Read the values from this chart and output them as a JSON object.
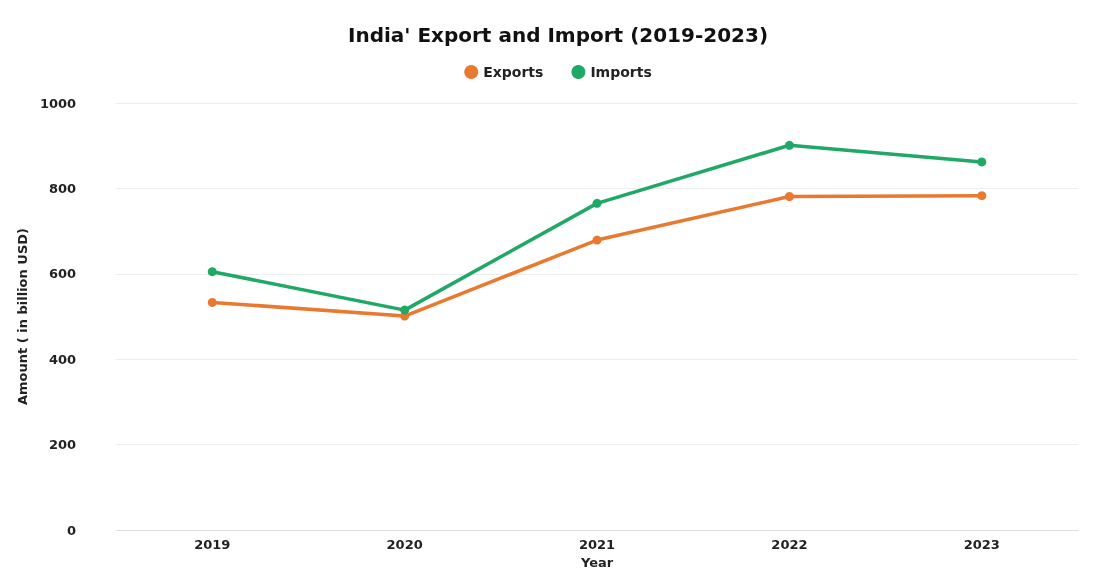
{
  "chart_data": {
    "type": "line",
    "title": "India' Export and Import (2019-2023)",
    "xlabel": "Year",
    "ylabel": "Amount ( in billion USD)",
    "categories": [
      "2019",
      "2020",
      "2021",
      "2022",
      "2023"
    ],
    "series": [
      {
        "name": "Exports",
        "color": "#e8792f",
        "values": [
          533,
          501,
          679,
          781,
          783
        ]
      },
      {
        "name": "Imports",
        "color": "#1fa866",
        "values": [
          605,
          515,
          765,
          901,
          862
        ]
      }
    ],
    "ylim": [
      0,
      1000
    ],
    "yticks": [
      0,
      200,
      400,
      600,
      800,
      1000
    ],
    "grid": "y",
    "legend": "top",
    "marker": "circle",
    "line_style": "solid"
  }
}
